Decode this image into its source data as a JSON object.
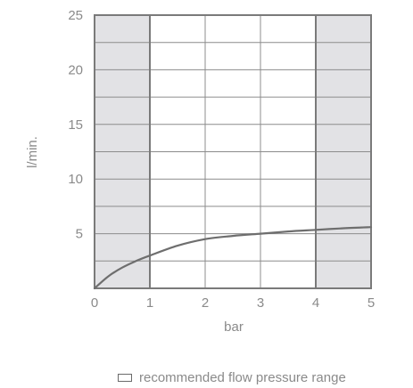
{
  "chart_data": {
    "type": "line",
    "xlabel": "bar",
    "ylabel": "l/min.",
    "xlim": [
      0,
      5
    ],
    "ylim": [
      0,
      25
    ],
    "x_ticks": [
      "0",
      "1",
      "2",
      "3",
      "4",
      "5"
    ],
    "y_ticks": [
      "5",
      "10",
      "15",
      "20",
      "25"
    ],
    "minor_y_step": 2.5,
    "shaded_ranges": [
      [
        0,
        1
      ],
      [
        4,
        5
      ]
    ],
    "recommended_range": [
      1,
      4
    ],
    "series": [
      {
        "x": [
          0,
          0.25,
          0.5,
          0.75,
          1,
          1.5,
          2,
          2.5,
          3,
          3.5,
          4,
          4.5,
          5
        ],
        "y": [
          0,
          1.1,
          1.9,
          2.5,
          3.0,
          3.9,
          4.5,
          4.8,
          5.0,
          5.2,
          5.35,
          5.5,
          5.6
        ]
      }
    ],
    "colors": {
      "line": "#6e6e6e",
      "shade": "#e2e2e5",
      "frame": "#7a7a7a",
      "grid": "#8c8c8c",
      "text": "#8a8a8a"
    },
    "grid": true,
    "legend": {
      "label": "recommended flow pressure range",
      "placement": "bottom"
    }
  }
}
